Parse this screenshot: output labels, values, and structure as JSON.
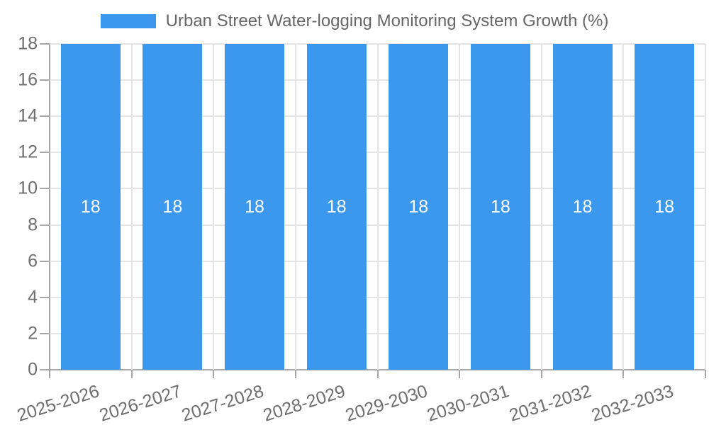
{
  "legend": {
    "label": "Urban Street Water-logging Monitoring System Growth (%)",
    "swatch_color": "#3b98ec"
  },
  "chart_data": {
    "type": "bar",
    "title": "Urban Street Water-logging Monitoring System Growth (%)",
    "categories": [
      "2025-2026",
      "2026-2027",
      "2027-2028",
      "2028-2029",
      "2029-2030",
      "2030-2031",
      "2031-2032",
      "2032-2033"
    ],
    "series": [
      {
        "name": "Urban Street Water-logging Monitoring System Growth (%)",
        "values": [
          18,
          18,
          18,
          18,
          18,
          18,
          18,
          18
        ]
      }
    ],
    "bar_labels": [
      "18",
      "18",
      "18",
      "18",
      "18",
      "18",
      "18",
      "18"
    ],
    "xlabel": "",
    "ylabel": "",
    "ylim": [
      0,
      18
    ],
    "yticks": [
      0,
      2,
      4,
      6,
      8,
      10,
      12,
      14,
      16,
      18
    ],
    "grid": true,
    "legend_position": "top",
    "x_label_rotation_deg": -17.5,
    "bar_color": "#3b98ec",
    "bar_label_color": "#ffffff",
    "axis_color": "#a6a6a6",
    "gridline_color": "#e4e4e4",
    "tick_label_color": "#6e6e6e",
    "legend_text_color": "#666666",
    "background_color": "#ffffff"
  }
}
